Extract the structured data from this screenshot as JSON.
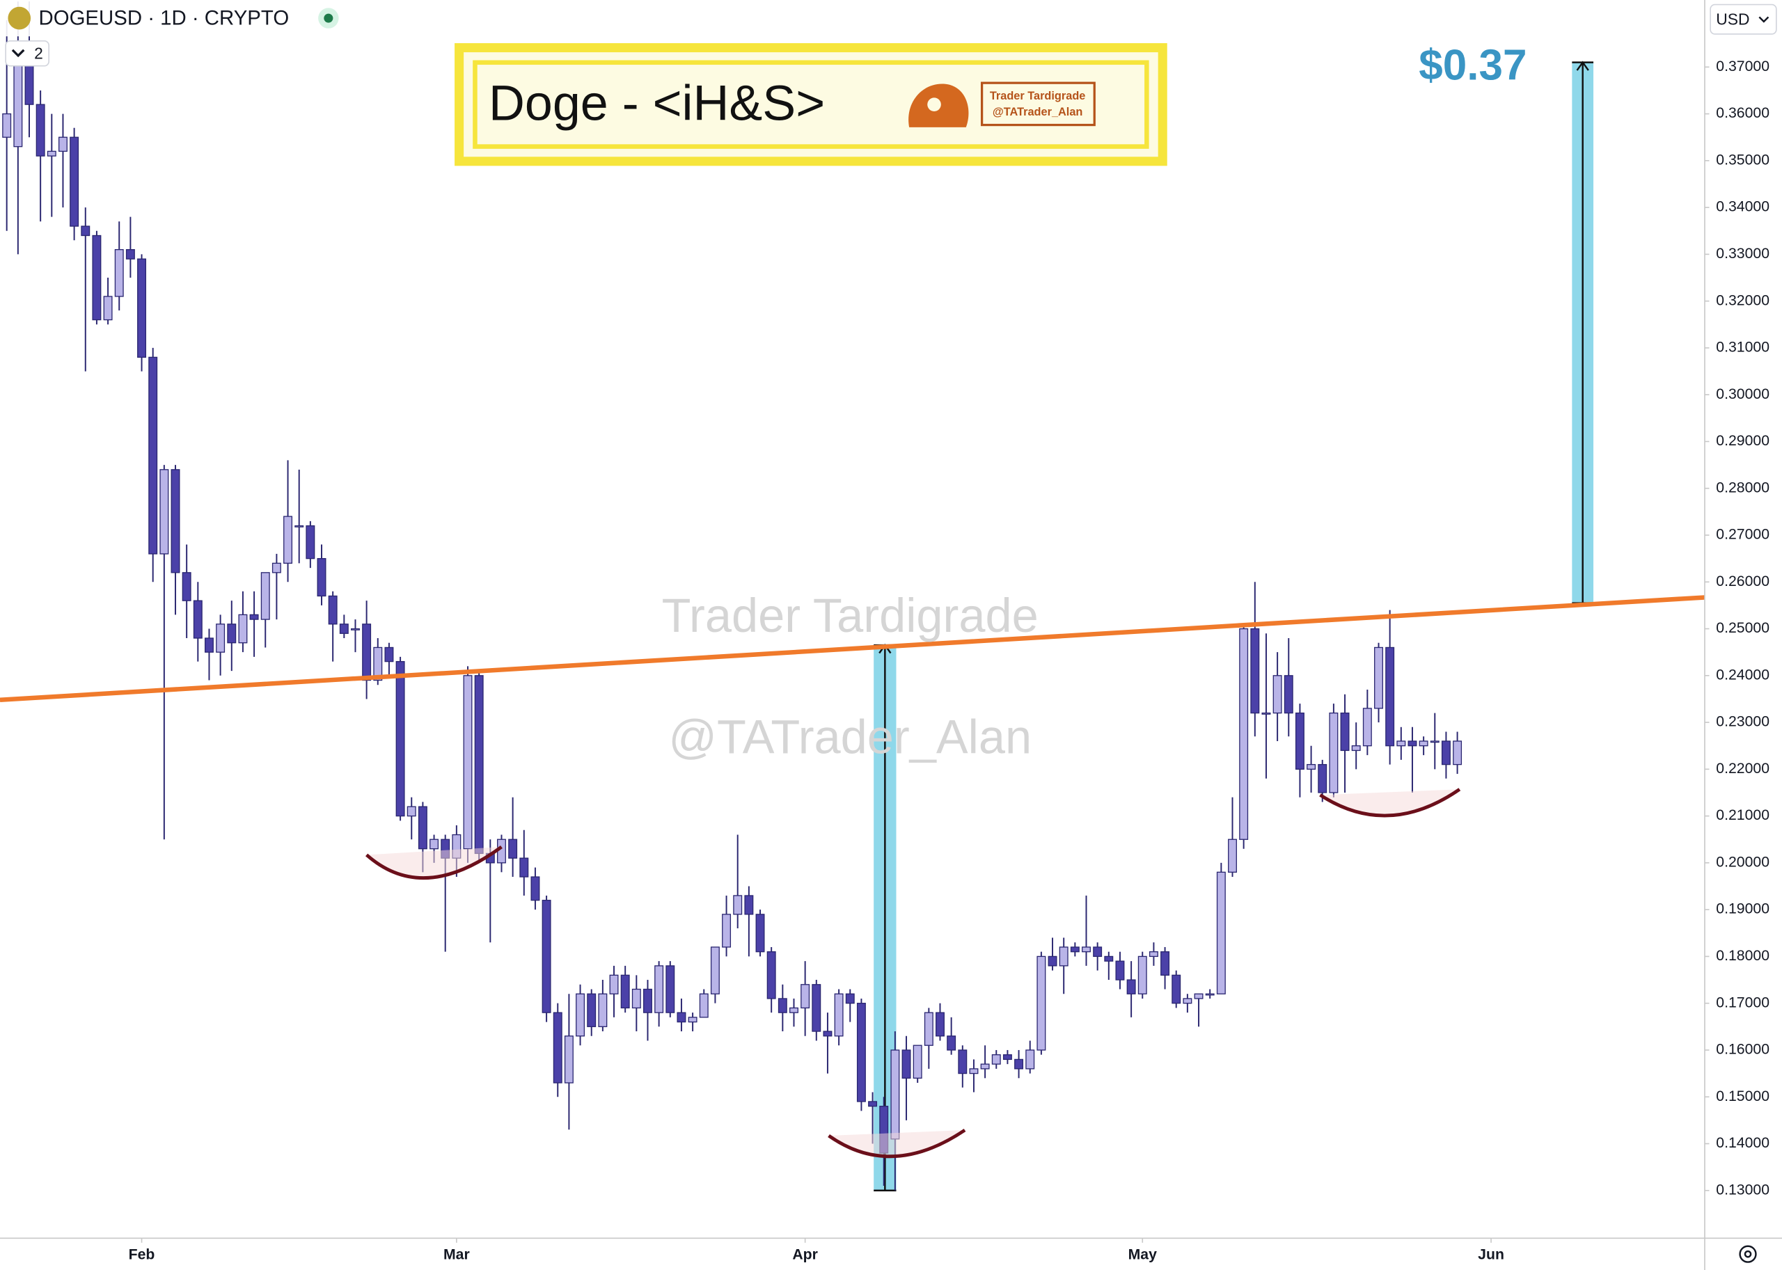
{
  "chart_data": {
    "type": "candlestick",
    "symbol": "DOGEUSD · 1D · CRYPTO",
    "indicator_count": 2,
    "currency": "USD",
    "title": "Doge - <iH&S>",
    "logo_lines": [
      "Trader Tardigrade",
      "@TATrader_Alan"
    ],
    "watermark": [
      "Trader Tardigrade",
      "@TATrader_Alan"
    ],
    "target_label": "$0.37",
    "up_color": "#b9b4e8",
    "down_color": "#4b41a8",
    "edge_color": "#2a2670",
    "grid": false,
    "xlim": [
      -0.6,
      151
    ],
    "ylim": [
      0.11981,
      0.38432
    ],
    "xticks": [
      {
        "value": 12,
        "label": "Feb"
      },
      {
        "value": 40,
        "label": "Mar"
      },
      {
        "value": 71,
        "label": "Apr"
      },
      {
        "value": 101,
        "label": "May"
      },
      {
        "value": 132,
        "label": "Jun"
      }
    ],
    "yticks": [
      {
        "value": 0.13,
        "label": "0.13000"
      },
      {
        "value": 0.14,
        "label": "0.14000"
      },
      {
        "value": 0.15,
        "label": "0.15000"
      },
      {
        "value": 0.16,
        "label": "0.16000"
      },
      {
        "value": 0.17,
        "label": "0.17000"
      },
      {
        "value": 0.18,
        "label": "0.18000"
      },
      {
        "value": 0.19,
        "label": "0.19000"
      },
      {
        "value": 0.2,
        "label": "0.20000"
      },
      {
        "value": 0.21,
        "label": "0.21000"
      },
      {
        "value": 0.22,
        "label": "0.22000"
      },
      {
        "value": 0.23,
        "label": "0.23000"
      },
      {
        "value": 0.24,
        "label": "0.24000"
      },
      {
        "value": 0.25,
        "label": "0.25000"
      },
      {
        "value": 0.26,
        "label": "0.26000"
      },
      {
        "value": 0.27,
        "label": "0.27000"
      },
      {
        "value": 0.28,
        "label": "0.28000"
      },
      {
        "value": 0.29,
        "label": "0.29000"
      },
      {
        "value": 0.3,
        "label": "0.30000"
      },
      {
        "value": 0.31,
        "label": "0.31000"
      },
      {
        "value": 0.32,
        "label": "0.32000"
      },
      {
        "value": 0.33,
        "label": "0.33000"
      },
      {
        "value": 0.34,
        "label": "0.34000"
      },
      {
        "value": 0.35,
        "label": "0.35000"
      },
      {
        "value": 0.36,
        "label": "0.36000"
      },
      {
        "value": 0.37,
        "label": "0.37000"
      }
    ],
    "x": [
      0,
      1,
      2,
      3,
      4,
      5,
      6,
      7,
      8,
      9,
      10,
      11,
      12,
      13,
      14,
      15,
      16,
      17,
      18,
      19,
      20,
      21,
      22,
      23,
      24,
      25,
      26,
      27,
      28,
      29,
      30,
      31,
      32,
      33,
      34,
      35,
      36,
      37,
      38,
      39,
      40,
      41,
      42,
      43,
      44,
      45,
      46,
      47,
      48,
      49,
      50,
      51,
      52,
      53,
      54,
      55,
      56,
      57,
      58,
      59,
      60,
      61,
      62,
      63,
      64,
      65,
      66,
      67,
      68,
      69,
      70,
      71,
      72,
      73,
      74,
      75,
      76,
      77,
      78,
      79,
      80,
      81,
      82,
      83,
      84,
      85,
      86,
      87,
      88,
      89,
      90,
      91,
      92,
      93,
      94,
      95,
      96,
      97,
      98,
      99,
      100,
      101,
      102,
      103,
      104,
      105,
      106,
      107,
      108,
      109,
      110,
      111,
      112,
      113,
      114,
      115,
      116,
      117,
      118,
      119,
      120,
      121,
      122,
      123,
      124,
      125,
      126,
      127,
      128,
      129
    ],
    "open": [
      0.355,
      0.353,
      0.372,
      0.362,
      0.351,
      0.352,
      0.355,
      0.336,
      0.334,
      0.316,
      0.321,
      0.331,
      0.329,
      0.308,
      0.266,
      0.284,
      0.262,
      0.256,
      0.248,
      0.245,
      0.251,
      0.247,
      0.253,
      0.252,
      0.262,
      0.264,
      0.272,
      0.272,
      0.265,
      0.257,
      0.251,
      0.25,
      0.251,
      0.239,
      0.246,
      0.243,
      0.21,
      0.212,
      0.203,
      0.205,
      0.201,
      0.203,
      0.24,
      0.202,
      0.2,
      0.205,
      0.201,
      0.197,
      0.192,
      0.168,
      0.153,
      0.163,
      0.172,
      0.165,
      0.172,
      0.176,
      0.169,
      0.173,
      0.168,
      0.178,
      0.168,
      0.166,
      0.167,
      0.172,
      0.182,
      0.189,
      0.193,
      0.189,
      0.181,
      0.171,
      0.168,
      0.169,
      0.174,
      0.164,
      0.163,
      0.172,
      0.17,
      0.149,
      0.148,
      0.141,
      0.16,
      0.154,
      0.161,
      0.168,
      0.163,
      0.16,
      0.155,
      0.156,
      0.157,
      0.159,
      0.158,
      0.156,
      0.16,
      0.18,
      0.178,
      0.182,
      0.181,
      0.182,
      0.18,
      0.179,
      0.175,
      0.172,
      0.18,
      0.181,
      0.176,
      0.17,
      0.171,
      0.172,
      0.172,
      0.198,
      0.205,
      0.25,
      0.232,
      0.232,
      0.24,
      0.232,
      0.22,
      0.221,
      0.215,
      0.232,
      0.224,
      0.225,
      0.233,
      0.246,
      0.225,
      0.226,
      0.225,
      0.226,
      0.226,
      0.221
    ],
    "high": [
      0.38,
      0.384,
      0.384,
      0.365,
      0.36,
      0.36,
      0.357,
      0.34,
      0.335,
      0.325,
      0.337,
      0.338,
      0.33,
      0.31,
      0.285,
      0.285,
      0.268,
      0.26,
      0.25,
      0.253,
      0.256,
      0.258,
      0.258,
      0.262,
      0.266,
      0.286,
      0.284,
      0.273,
      0.268,
      0.258,
      0.253,
      0.252,
      0.256,
      0.248,
      0.247,
      0.244,
      0.214,
      0.213,
      0.206,
      0.206,
      0.208,
      0.242,
      0.241,
      0.205,
      0.206,
      0.214,
      0.207,
      0.199,
      0.193,
      0.17,
      0.172,
      0.174,
      0.173,
      0.175,
      0.178,
      0.178,
      0.176,
      0.175,
      0.179,
      0.179,
      0.171,
      0.168,
      0.173,
      0.182,
      0.193,
      0.206,
      0.195,
      0.19,
      0.182,
      0.174,
      0.171,
      0.179,
      0.175,
      0.168,
      0.173,
      0.173,
      0.171,
      0.151,
      0.15,
      0.164,
      0.163,
      0.161,
      0.169,
      0.17,
      0.167,
      0.161,
      0.158,
      0.161,
      0.16,
      0.16,
      0.16,
      0.162,
      0.181,
      0.184,
      0.184,
      0.183,
      0.193,
      0.183,
      0.181,
      0.181,
      0.179,
      0.181,
      0.183,
      0.182,
      0.177,
      0.172,
      0.172,
      0.173,
      0.2,
      0.214,
      0.251,
      0.26,
      0.249,
      0.245,
      0.248,
      0.234,
      0.225,
      0.222,
      0.234,
      0.236,
      0.23,
      0.237,
      0.247,
      0.254,
      0.229,
      0.229,
      0.227,
      0.232,
      0.228,
      0.228
    ],
    "low": [
      0.335,
      0.33,
      0.355,
      0.337,
      0.338,
      0.34,
      0.333,
      0.305,
      0.315,
      0.315,
      0.318,
      0.325,
      0.305,
      0.26,
      0.205,
      0.253,
      0.248,
      0.243,
      0.239,
      0.24,
      0.241,
      0.245,
      0.244,
      0.246,
      0.252,
      0.26,
      0.264,
      0.263,
      0.255,
      0.243,
      0.248,
      0.245,
      0.235,
      0.238,
      0.24,
      0.209,
      0.205,
      0.198,
      0.2,
      0.181,
      0.197,
      0.2,
      0.2,
      0.183,
      0.198,
      0.197,
      0.193,
      0.19,
      0.166,
      0.15,
      0.143,
      0.161,
      0.163,
      0.164,
      0.167,
      0.168,
      0.164,
      0.162,
      0.165,
      0.167,
      0.164,
      0.164,
      0.167,
      0.17,
      0.18,
      0.186,
      0.18,
      0.18,
      0.168,
      0.164,
      0.165,
      0.163,
      0.162,
      0.155,
      0.161,
      0.166,
      0.147,
      0.14,
      0.131,
      0.13,
      0.145,
      0.153,
      0.156,
      0.162,
      0.159,
      0.152,
      0.151,
      0.154,
      0.156,
      0.157,
      0.154,
      0.155,
      0.159,
      0.177,
      0.172,
      0.18,
      0.178,
      0.177,
      0.175,
      0.173,
      0.167,
      0.171,
      0.178,
      0.173,
      0.169,
      0.168,
      0.165,
      0.171,
      0.172,
      0.197,
      0.203,
      0.227,
      0.218,
      0.226,
      0.227,
      0.214,
      0.215,
      0.213,
      0.214,
      0.215,
      0.22,
      0.223,
      0.23,
      0.221,
      0.222,
      0.215,
      0.223,
      0.22,
      0.218,
      0.219
    ],
    "close": [
      0.36,
      0.372,
      0.362,
      0.351,
      0.352,
      0.355,
      0.336,
      0.334,
      0.316,
      0.321,
      0.331,
      0.329,
      0.308,
      0.266,
      0.284,
      0.262,
      0.256,
      0.248,
      0.245,
      0.251,
      0.247,
      0.253,
      0.252,
      0.262,
      0.264,
      0.274,
      0.272,
      0.265,
      0.257,
      0.251,
      0.249,
      0.25,
      0.239,
      0.246,
      0.243,
      0.21,
      0.212,
      0.203,
      0.205,
      0.201,
      0.206,
      0.24,
      0.202,
      0.2,
      0.205,
      0.201,
      0.197,
      0.192,
      0.168,
      0.153,
      0.163,
      0.172,
      0.165,
      0.172,
      0.176,
      0.169,
      0.173,
      0.168,
      0.178,
      0.168,
      0.166,
      0.167,
      0.172,
      0.182,
      0.189,
      0.193,
      0.189,
      0.181,
      0.171,
      0.168,
      0.169,
      0.174,
      0.164,
      0.163,
      0.172,
      0.17,
      0.149,
      0.148,
      0.138,
      0.16,
      0.154,
      0.161,
      0.168,
      0.163,
      0.16,
      0.155,
      0.156,
      0.157,
      0.159,
      0.158,
      0.156,
      0.16,
      0.18,
      0.178,
      0.182,
      0.181,
      0.182,
      0.18,
      0.179,
      0.175,
      0.172,
      0.18,
      0.181,
      0.176,
      0.17,
      0.171,
      0.172,
      0.172,
      0.198,
      0.205,
      0.25,
      0.232,
      0.232,
      0.24,
      0.232,
      0.22,
      0.221,
      0.215,
      0.232,
      0.224,
      0.225,
      0.233,
      0.246,
      0.225,
      0.226,
      0.225,
      0.226,
      0.226,
      0.221,
      0.226
    ],
    "neckline": {
      "color": "#f07a2b",
      "x": [
        -0.6,
        151
      ],
      "y": [
        0.2348,
        0.2567
      ]
    },
    "targets": [
      {
        "color": "#8fd8ea",
        "x": [
          77.1,
          79.1
        ],
        "low": 0.13,
        "high": 0.2465
      },
      {
        "color": "#8fd8ea",
        "x": [
          139.2,
          141.1
        ],
        "low": 0.2555,
        "high": 0.371
      }
    ],
    "arcs": [
      {
        "color": "#6b0f1a",
        "x": [
          32,
          37.5,
          44
        ],
        "y": [
          0.2017,
          0.1968,
          0.2034
        ]
      },
      {
        "color": "#6b0f1a",
        "x": [
          73.1,
          78.9,
          85.2
        ],
        "y": [
          0.1417,
          0.1373,
          0.1429
        ]
      },
      {
        "color": "#6b0f1a",
        "x": [
          116.8,
          122.9,
          129.2
        ],
        "y": [
          0.2145,
          0.2101,
          0.2157
        ]
      }
    ]
  }
}
